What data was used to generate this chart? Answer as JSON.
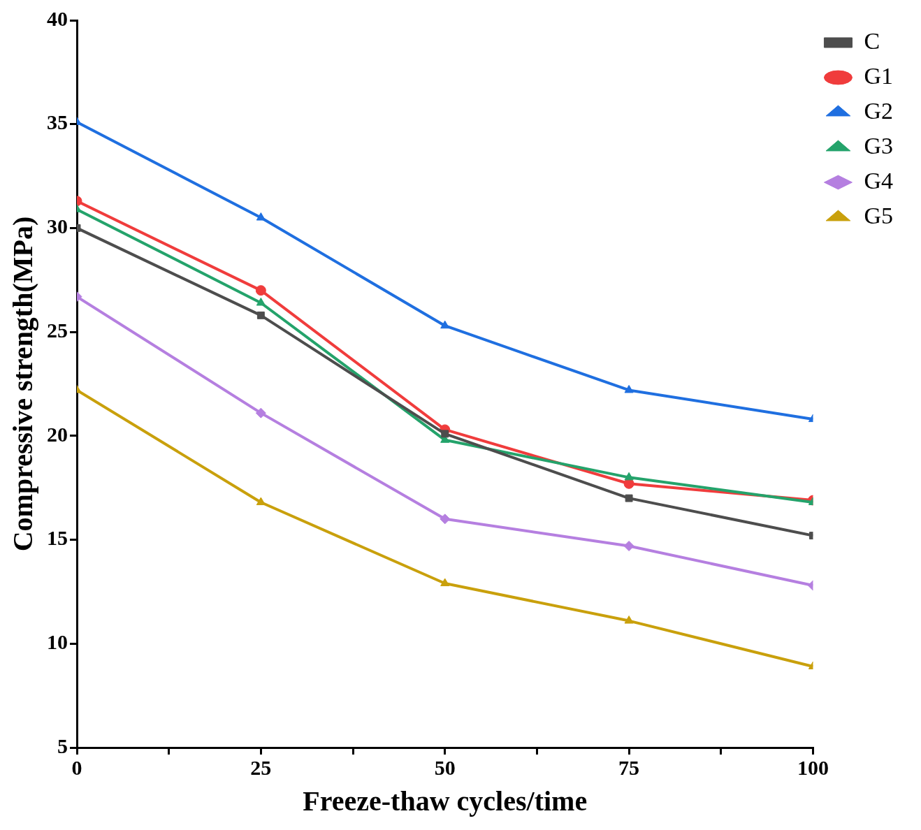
{
  "chart_data": {
    "type": "line",
    "xlabel": "Freeze-thaw cycles/time",
    "ylabel": "Compressive strength(MPa)",
    "x": [
      0,
      25,
      50,
      75,
      100
    ],
    "xlim": [
      0,
      100
    ],
    "xticks": [
      0,
      {
        "value": 12.5,
        "label": null
      },
      25,
      {
        "value": 37.5,
        "label": null
      },
      50,
      {
        "value": 62.5,
        "label": null
      },
      75,
      {
        "value": 87.5,
        "label": null
      },
      100
    ],
    "ylim": [
      5,
      40
    ],
    "yticks": [
      5,
      10,
      15,
      20,
      25,
      30,
      35,
      40
    ],
    "grid": false,
    "legend": "top right",
    "line_style": "solid",
    "series": [
      {
        "name": "C",
        "color": "#4d4d4d",
        "marker": "square",
        "values": [
          30.0,
          25.8,
          20.1,
          17.0,
          15.2
        ]
      },
      {
        "name": "G1",
        "color": "#f03c3c",
        "marker": "circle",
        "values": [
          31.3,
          27.0,
          20.3,
          17.7,
          16.9
        ]
      },
      {
        "name": "G2",
        "color": "#1f6fe0",
        "marker": "triangle",
        "values": [
          35.1,
          30.5,
          25.3,
          22.2,
          20.8
        ]
      },
      {
        "name": "G3",
        "color": "#24a36b",
        "marker": "triangle",
        "values": [
          30.9,
          26.4,
          19.8,
          18.0,
          16.8
        ]
      },
      {
        "name": "G4",
        "color": "#b57fe0",
        "marker": "diamond",
        "values": [
          26.7,
          21.1,
          16.0,
          14.7,
          12.8
        ]
      },
      {
        "name": "G5",
        "color": "#c9a00c",
        "marker": "triangle",
        "values": [
          22.2,
          16.8,
          12.9,
          11.1,
          8.9
        ]
      }
    ]
  }
}
